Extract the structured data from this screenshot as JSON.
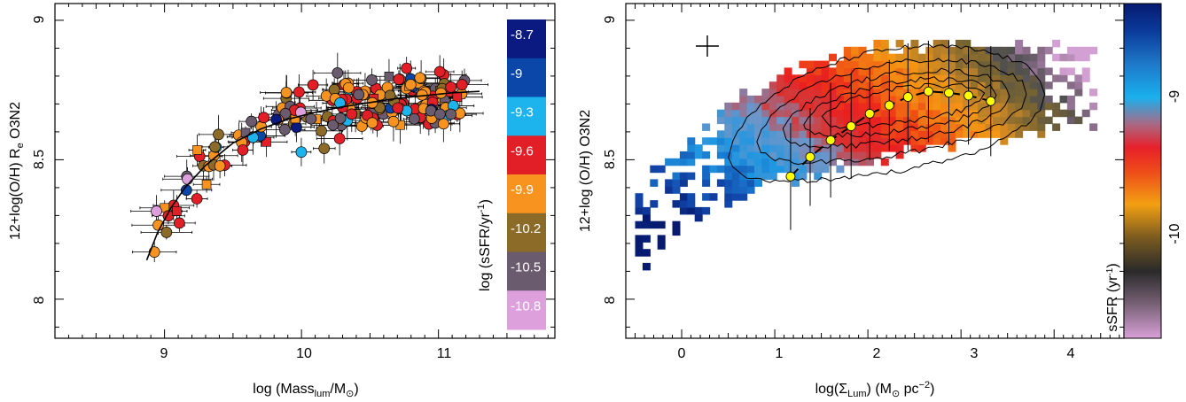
{
  "chart_data": [
    {
      "type": "scatter",
      "xlabel": {
        "pre": "log (Mass",
        "sub": "lum",
        "mid": "/M",
        "post": ")"
      },
      "ylabel": {
        "pre": "12+log(O/H) R",
        "sub": "e",
        "post": " O3N2"
      },
      "xlim": [
        8.2,
        11.85
      ],
      "ylim": [
        7.86,
        9.06
      ],
      "xticks": [
        "9",
        "10",
        "11"
      ],
      "yticks": [
        "8",
        "8.5",
        "9"
      ],
      "colorbar": {
        "label": {
          "pre": "log (sSFR/yr",
          "sup": "-1",
          "post": ")"
        },
        "bins": [
          {
            "label": "-8.7",
            "color": "#0b1a80"
          },
          {
            "label": "-9",
            "color": "#0a47a8"
          },
          {
            "label": "-9.3",
            "color": "#1db3ec"
          },
          {
            "label": "-9.6",
            "color": "#e21f26"
          },
          {
            "label": "-9.9",
            "color": "#f7931e"
          },
          {
            "label": "-10.2",
            "color": "#8c6a27"
          },
          {
            "label": "-10.5",
            "color": "#6b5b6e"
          },
          {
            "label": "-10.8",
            "color": "#dda0dd"
          }
        ]
      },
      "fit_curve": [
        [
          8.87,
          8.14
        ],
        [
          8.95,
          8.24
        ],
        [
          9.05,
          8.33
        ],
        [
          9.15,
          8.4
        ],
        [
          9.3,
          8.48
        ],
        [
          9.5,
          8.56
        ],
        [
          9.7,
          8.61
        ],
        [
          9.9,
          8.645
        ],
        [
          10.1,
          8.67
        ],
        [
          10.3,
          8.69
        ],
        [
          10.5,
          8.705
        ],
        [
          10.7,
          8.72
        ],
        [
          10.9,
          8.73
        ],
        [
          11.1,
          8.74
        ],
        [
          11.3,
          8.745
        ]
      ]
    },
    {
      "type": "heatmap",
      "xlabel": {
        "pre": "log(Σ",
        "sub": "Lum",
        "mid": ") (M",
        "post": " pc",
        "sup": "−2",
        "end": ")"
      },
      "ylabel": "12+log (O/H) O3N2",
      "xlim": [
        -0.6,
        4.75
      ],
      "ylim": [
        7.86,
        9.06
      ],
      "xticks": [
        "0",
        "1",
        "2",
        "3",
        "4"
      ],
      "yticks": [
        "8",
        "8.5",
        "9"
      ],
      "colorbar": {
        "label": {
          "pre": "sSFR (yr",
          "sup": "-1",
          "post": ")"
        },
        "ticks": [
          "-9",
          "-10"
        ]
      },
      "median_points": [
        [
          1.17,
          8.44
        ],
        [
          1.38,
          8.51
        ],
        [
          1.6,
          8.57
        ],
        [
          1.82,
          8.62
        ],
        [
          2.02,
          8.665
        ],
        [
          2.23,
          8.695
        ],
        [
          2.43,
          8.725
        ],
        [
          2.65,
          8.745
        ],
        [
          2.87,
          8.74
        ],
        [
          3.08,
          8.73
        ],
        [
          3.32,
          8.71
        ]
      ]
    }
  ]
}
